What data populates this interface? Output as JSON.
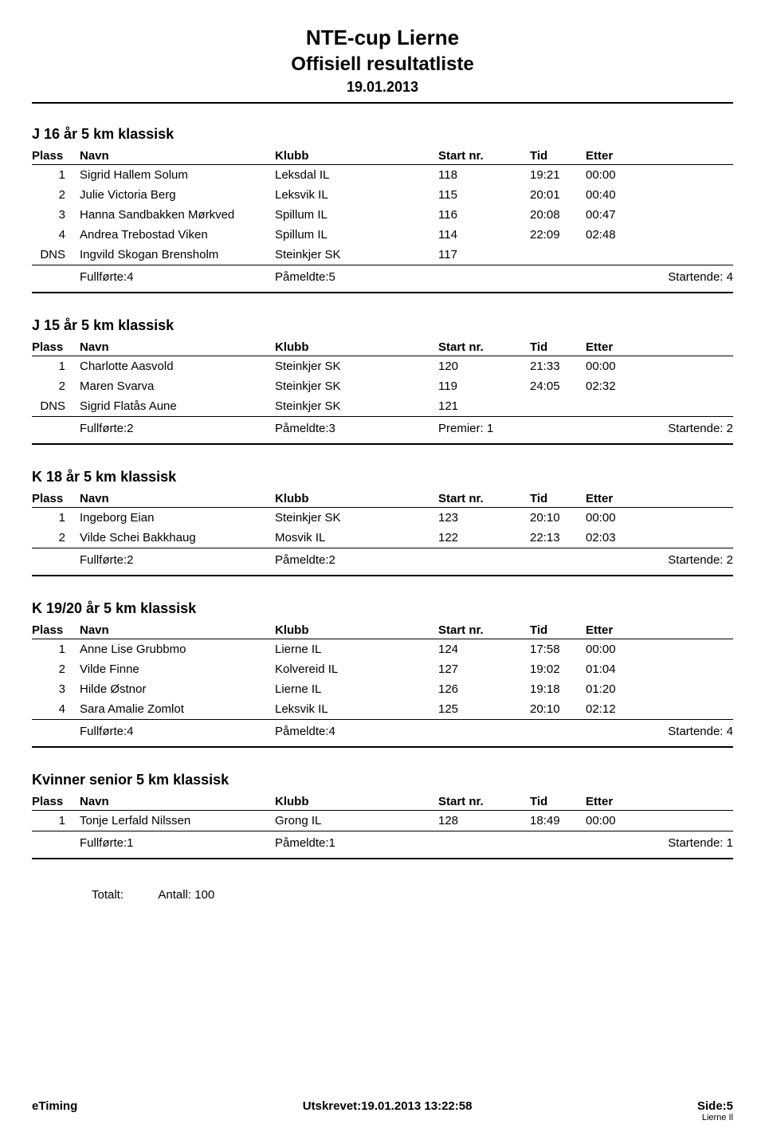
{
  "header": {
    "title": "NTE-cup Lierne",
    "subtitle": "Offisiell resultatliste",
    "date": "19.01.2013"
  },
  "columns": {
    "plass": "Plass",
    "navn": "Navn",
    "klubb": "Klubb",
    "startnr": "Start nr.",
    "tid": "Tid",
    "etter": "Etter"
  },
  "summary_labels": {
    "fullforte": "Fullførte:",
    "pameldte": "Påmeldte:",
    "premier": "Premier:",
    "startende": "Startende:"
  },
  "sections": [
    {
      "title": "J 16 år 5 km klassisk",
      "rows": [
        {
          "plass": "1",
          "navn": "Sigrid Hallem Solum",
          "klubb": "Leksdal IL",
          "start": "118",
          "tid": "19:21",
          "etter": "00:00"
        },
        {
          "plass": "2",
          "navn": "Julie Victoria Berg",
          "klubb": "Leksvik IL",
          "start": "115",
          "tid": "20:01",
          "etter": "00:40"
        },
        {
          "plass": "3",
          "navn": "Hanna Sandbakken Mørkved",
          "klubb": "Spillum IL",
          "start": "116",
          "tid": "20:08",
          "etter": "00:47"
        },
        {
          "plass": "4",
          "navn": "Andrea Trebostad Viken",
          "klubb": "Spillum IL",
          "start": "114",
          "tid": "22:09",
          "etter": "02:48"
        },
        {
          "plass": "DNS",
          "navn": "Ingvild Skogan Brensholm",
          "klubb": "Steinkjer SK",
          "start": "117",
          "tid": "",
          "etter": ""
        }
      ],
      "summary": {
        "fullforte": "4",
        "pameldte": "5",
        "premier": null,
        "startende": "4"
      }
    },
    {
      "title": "J 15 år 5 km klassisk",
      "rows": [
        {
          "plass": "1",
          "navn": "Charlotte Aasvold",
          "klubb": "Steinkjer SK",
          "start": "120",
          "tid": "21:33",
          "etter": "00:00"
        },
        {
          "plass": "2",
          "navn": "Maren Svarva",
          "klubb": "Steinkjer SK",
          "start": "119",
          "tid": "24:05",
          "etter": "02:32"
        },
        {
          "plass": "DNS",
          "navn": "Sigrid Flatås Aune",
          "klubb": "Steinkjer SK",
          "start": "121",
          "tid": "",
          "etter": ""
        }
      ],
      "summary": {
        "fullforte": "2",
        "pameldte": "3",
        "premier": "1",
        "startende": "2"
      }
    },
    {
      "title": "K 18 år 5 km klassisk",
      "rows": [
        {
          "plass": "1",
          "navn": "Ingeborg Eian",
          "klubb": "Steinkjer SK",
          "start": "123",
          "tid": "20:10",
          "etter": "00:00"
        },
        {
          "plass": "2",
          "navn": "Vilde Schei Bakkhaug",
          "klubb": "Mosvik IL",
          "start": "122",
          "tid": "22:13",
          "etter": "02:03"
        }
      ],
      "summary": {
        "fullforte": "2",
        "pameldte": "2",
        "premier": null,
        "startende": "2"
      }
    },
    {
      "title": "K 19/20 år 5 km klassisk",
      "rows": [
        {
          "plass": "1",
          "navn": "Anne Lise Grubbmo",
          "klubb": "Lierne IL",
          "start": "124",
          "tid": "17:58",
          "etter": "00:00"
        },
        {
          "plass": "2",
          "navn": "Vilde Finne",
          "klubb": "Kolvereid IL",
          "start": "127",
          "tid": "19:02",
          "etter": "01:04"
        },
        {
          "plass": "3",
          "navn": "Hilde Østnor",
          "klubb": "Lierne IL",
          "start": "126",
          "tid": "19:18",
          "etter": "01:20"
        },
        {
          "plass": "4",
          "navn": "Sara Amalie Zomlot",
          "klubb": "Leksvik IL",
          "start": "125",
          "tid": "20:10",
          "etter": "02:12"
        }
      ],
      "summary": {
        "fullforte": "4",
        "pameldte": "4",
        "premier": null,
        "startende": "4"
      }
    },
    {
      "title": "Kvinner senior 5 km klassisk",
      "rows": [
        {
          "plass": "1",
          "navn": "Tonje Lerfald Nilssen",
          "klubb": "Grong IL",
          "start": "128",
          "tid": "18:49",
          "etter": "00:00"
        }
      ],
      "summary": {
        "fullforte": "1",
        "pameldte": "1",
        "premier": null,
        "startende": "1"
      }
    }
  ],
  "totalt": {
    "label": "Totalt:",
    "antall_label": "Antall: 100"
  },
  "footer": {
    "left": "eTiming",
    "center": "Utskrevet:19.01.2013 13:22:58",
    "right": "Side:5",
    "right_sub": "Lierne Il"
  }
}
